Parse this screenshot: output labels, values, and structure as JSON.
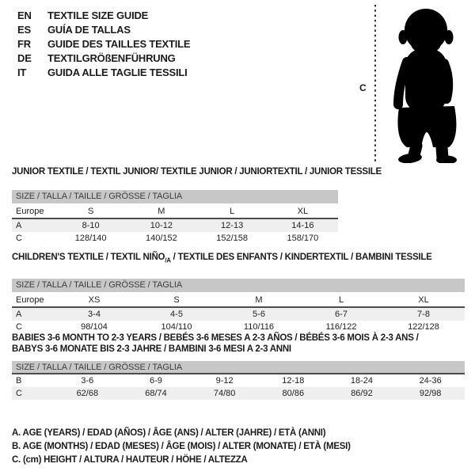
{
  "header": {
    "languages": [
      {
        "code": "EN",
        "label": "TEXTILE SIZE GUIDE"
      },
      {
        "code": "ES",
        "label": "GUÍA DE TALLAS"
      },
      {
        "code": "FR",
        "label": "GUIDE DES TAILLES TEXTILE"
      },
      {
        "code": "DE",
        "label": "TEXTILGRÖßENFÜHRUNG"
      },
      {
        "code": "IT",
        "label": "GUIDA ALLE TAGLIE TESSILI"
      }
    ]
  },
  "figure": {
    "measure_label": "C",
    "image_name": "toddler-silhouette"
  },
  "tables": [
    {
      "title": "JUNIOR TEXTILE / TEXTIL JUNIOR/ TEXTILE JUNIOR / JUNIORTEXTIL / JUNIOR TESSILE",
      "size_header": "SIZE / TALLA / TAILLE / GRÖSSE / TAGLIA",
      "rows": [
        {
          "type": "size",
          "shaded": false,
          "cells": [
            "Europe",
            "S",
            "M",
            "L",
            "XL"
          ]
        },
        {
          "type": "data",
          "shaded": true,
          "cells": [
            "A",
            "8-10",
            "10-12",
            "12-13",
            "14-16"
          ]
        },
        {
          "type": "data",
          "shaded": false,
          "cells": [
            "C",
            "128/140",
            "140/152",
            "152/158",
            "158/170"
          ]
        }
      ]
    },
    {
      "title_parts": {
        "pre": "CHILDREN'S TEXTILE / TEXTIL NIÑO",
        "sub": "/A",
        "post": " / TEXTILE DES ENFANTS / KINDERTEXTIL / BAMBINI TESSILE"
      },
      "size_header": "SIZE / TALLA / TAILLE / GRÖSSE / TAGLIA",
      "rows": [
        {
          "type": "size",
          "shaded": false,
          "cells": [
            "Europe",
            "XS",
            "S",
            "M",
            "L",
            "XL"
          ]
        },
        {
          "type": "data",
          "shaded": true,
          "cells": [
            "A",
            "3-4",
            "4-5",
            "5-6",
            "6-7",
            "7-8"
          ]
        },
        {
          "type": "data",
          "shaded": false,
          "cells": [
            "C",
            "98/104",
            "104/110",
            "110/116",
            "116/122",
            "122/128"
          ]
        }
      ]
    },
    {
      "title_lines": [
        "BABIES 3-6 MONTH TO 2-3 YEARS / BEBÉS 3-6 MESES A 2-3 AÑOS / BÉBÉS 3-6 MOIS À 2-3 ANS /",
        "BABYS 3-6 MONATE BIS 2-3 JAHRE / BAMBINI 3-6 MESI A 2-3 ANNI"
      ],
      "size_header": "SIZE / TALLA / TAILLE / GRÖSSE / TAGLIA",
      "rows": [
        {
          "type": "data",
          "shaded": false,
          "cells": [
            "B",
            "3-6",
            "6-9",
            "9-12",
            "12-18",
            "18-24",
            "24-36"
          ]
        },
        {
          "type": "data",
          "shaded": true,
          "cells": [
            "C",
            "62/68",
            "68/74",
            "74/80",
            "80/86",
            "86/92",
            "92/98"
          ]
        }
      ]
    }
  ],
  "legend": [
    "A. AGE (YEARS) / EDAD (AÑOS) / ÂGE (ANS) / ALTER (JAHRE) / ETÀ (ANNI)",
    "B. AGE (MONTHS) / EDAD (MESES) / ÂGE (MOIS) / ALTER (MONATE) / ETÀ (MESI)",
    "C. (cm) HEIGHT / ALTURA / HAUTEUR / HÖHE / ALTEZZA"
  ],
  "colors": {
    "table_header_bg": "#c7c7c7",
    "row_shaded_bg": "#efefef",
    "separator": "#4d4d4d",
    "text": "#1c1c1c"
  }
}
